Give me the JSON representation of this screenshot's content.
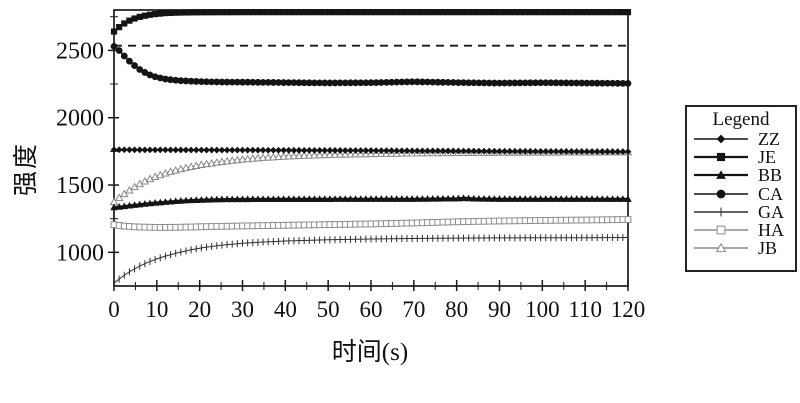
{
  "page": {
    "background": "#ffffff"
  },
  "chart_data": {
    "type": "line",
    "title": "",
    "xlabel": "时间(s)",
    "ylabel": "强度",
    "xlim": [
      0,
      120
    ],
    "ylim": [
      750,
      2800
    ],
    "xticks": {
      "major": [
        0,
        10,
        20,
        30,
        40,
        50,
        60,
        70,
        80,
        90,
        100,
        110,
        120
      ],
      "minor": [
        5,
        15,
        25,
        35,
        45,
        55,
        65,
        75,
        85,
        95,
        105,
        115
      ]
    },
    "yticks": {
      "major": [
        1000,
        1500,
        2000,
        2500
      ],
      "minor": [
        1250,
        1750,
        2250,
        2750
      ]
    },
    "grid": false,
    "frame": true,
    "axis_color": "#1a1a1a",
    "background": "#ffffff",
    "reference_line": {
      "style": "dashed",
      "value": 2535,
      "color": "#1a1a1a"
    },
    "legend": {
      "title": "Legend",
      "position": "right",
      "border": true,
      "entries": [
        "ZZ",
        "JE",
        "BB",
        "CA",
        "GA",
        "HA",
        "JB"
      ]
    },
    "marker_step_s": 1.2,
    "draw_order": [
      "GA",
      "HA",
      "JB",
      "CA",
      "JE",
      "BB",
      "ZZ"
    ],
    "series": [
      {
        "name": "ZZ",
        "marker": "diamond",
        "fill": "solid",
        "color": "#141414",
        "line_width": 1.6,
        "marker_size": 3.4,
        "points": [
          [
            0,
            1762
          ],
          [
            10,
            1761
          ],
          [
            20,
            1760
          ],
          [
            30,
            1759
          ],
          [
            40,
            1758
          ],
          [
            50,
            1757
          ],
          [
            60,
            1756
          ],
          [
            70,
            1754
          ],
          [
            80,
            1753
          ],
          [
            90,
            1751
          ],
          [
            100,
            1750
          ],
          [
            110,
            1749
          ],
          [
            120,
            1748
          ]
        ]
      },
      {
        "name": "JE",
        "marker": "square",
        "fill": "solid",
        "color": "#141414",
        "line_width": 2.2,
        "marker_size": 3.1,
        "points": [
          [
            0,
            2640
          ],
          [
            1,
            2668
          ],
          [
            2,
            2692
          ],
          [
            3,
            2712
          ],
          [
            4,
            2727
          ],
          [
            5,
            2739
          ],
          [
            6,
            2749
          ],
          [
            8,
            2763
          ],
          [
            10,
            2771
          ],
          [
            12,
            2777
          ],
          [
            15,
            2781
          ],
          [
            20,
            2783
          ],
          [
            30,
            2784
          ],
          [
            50,
            2784
          ],
          [
            80,
            2784
          ],
          [
            120,
            2784
          ]
        ]
      },
      {
        "name": "BB",
        "marker": "triangle",
        "fill": "solid",
        "color": "#141414",
        "line_width": 2.2,
        "marker_size": 3.6,
        "points": [
          [
            0,
            1335
          ],
          [
            3,
            1346
          ],
          [
            6,
            1357
          ],
          [
            9,
            1367
          ],
          [
            12,
            1375
          ],
          [
            15,
            1383
          ],
          [
            18,
            1388
          ],
          [
            21,
            1392
          ],
          [
            25,
            1395
          ],
          [
            30,
            1396
          ],
          [
            40,
            1397
          ],
          [
            50,
            1397
          ],
          [
            60,
            1398
          ],
          [
            70,
            1398
          ],
          [
            80,
            1401
          ],
          [
            82,
            1404
          ],
          [
            84,
            1400
          ],
          [
            90,
            1398
          ],
          [
            100,
            1398
          ],
          [
            110,
            1398
          ],
          [
            120,
            1397
          ]
        ]
      },
      {
        "name": "CA",
        "marker": "circle",
        "fill": "solid",
        "color": "#141414",
        "line_width": 1.6,
        "marker_size": 3.4,
        "points": [
          [
            0,
            2530
          ],
          [
            1,
            2506
          ],
          [
            2,
            2472
          ],
          [
            3,
            2438
          ],
          [
            4,
            2408
          ],
          [
            5,
            2382
          ],
          [
            6,
            2358
          ],
          [
            8,
            2322
          ],
          [
            10,
            2300
          ],
          [
            12,
            2287
          ],
          [
            15,
            2276
          ],
          [
            20,
            2268
          ],
          [
            25,
            2265
          ],
          [
            30,
            2264
          ],
          [
            40,
            2261
          ],
          [
            50,
            2258
          ],
          [
            60,
            2260
          ],
          [
            70,
            2267
          ],
          [
            80,
            2261
          ],
          [
            90,
            2257
          ],
          [
            100,
            2260
          ],
          [
            110,
            2257
          ],
          [
            120,
            2255
          ]
        ]
      },
      {
        "name": "GA",
        "marker": "tick",
        "fill": "solid",
        "color": "#303030",
        "line_width": 1.0,
        "marker_size": 3.5,
        "points": [
          [
            0,
            772
          ],
          [
            1,
            797
          ],
          [
            2,
            821
          ],
          [
            3,
            843
          ],
          [
            4,
            863
          ],
          [
            5,
            881
          ],
          [
            6,
            898
          ],
          [
            8,
            927
          ],
          [
            10,
            951
          ],
          [
            12,
            972
          ],
          [
            15,
            998
          ],
          [
            18,
            1019
          ],
          [
            21,
            1036
          ],
          [
            25,
            1053
          ],
          [
            30,
            1068
          ],
          [
            35,
            1077
          ],
          [
            40,
            1084
          ],
          [
            45,
            1089
          ],
          [
            50,
            1093
          ],
          [
            60,
            1099
          ],
          [
            70,
            1103
          ],
          [
            80,
            1106
          ],
          [
            90,
            1107
          ],
          [
            100,
            1108
          ],
          [
            110,
            1109
          ],
          [
            120,
            1110
          ]
        ]
      },
      {
        "name": "HA",
        "marker": "square",
        "fill": "open",
        "color": "#8d8d8d",
        "line_width": 1.4,
        "marker_size": 2.9,
        "points": [
          [
            0,
            1205
          ],
          [
            2,
            1196
          ],
          [
            5,
            1189
          ],
          [
            10,
            1185
          ],
          [
            15,
            1186
          ],
          [
            20,
            1190
          ],
          [
            25,
            1193
          ],
          [
            30,
            1196
          ],
          [
            40,
            1201
          ],
          [
            50,
            1206
          ],
          [
            60,
            1211
          ],
          [
            70,
            1218
          ],
          [
            80,
            1227
          ],
          [
            90,
            1233
          ],
          [
            100,
            1237
          ],
          [
            110,
            1240
          ],
          [
            120,
            1244
          ]
        ]
      },
      {
        "name": "JB",
        "marker": "triangle",
        "fill": "open",
        "color": "#8a8a8a",
        "line_width": 1.3,
        "marker_size": 3.3,
        "points": [
          [
            0,
            1375
          ],
          [
            2,
            1426
          ],
          [
            4,
            1471
          ],
          [
            6,
            1509
          ],
          [
            8,
            1541
          ],
          [
            10,
            1567
          ],
          [
            13,
            1598
          ],
          [
            16,
            1623
          ],
          [
            20,
            1649
          ],
          [
            25,
            1673
          ],
          [
            30,
            1691
          ],
          [
            35,
            1704
          ],
          [
            40,
            1713
          ],
          [
            45,
            1720
          ],
          [
            50,
            1725
          ],
          [
            60,
            1732
          ],
          [
            70,
            1737
          ],
          [
            80,
            1740
          ],
          [
            90,
            1742
          ],
          [
            100,
            1743
          ],
          [
            110,
            1744
          ],
          [
            120,
            1745
          ]
        ]
      }
    ]
  }
}
